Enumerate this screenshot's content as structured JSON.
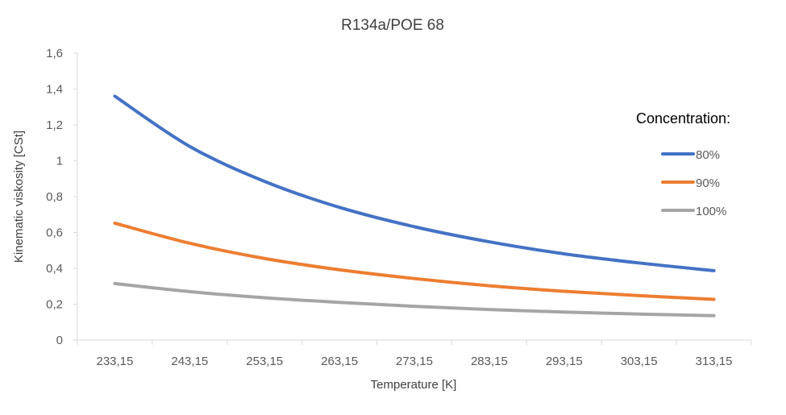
{
  "chart_data": {
    "type": "line",
    "title": "R134a/POE 68",
    "xlabel": "Temperature [K]",
    "ylabel": "Kinematic viskosity  [CSt]",
    "categories": [
      "233,15",
      "243,15",
      "253,15",
      "263,15",
      "273,15",
      "283,15",
      "293,15",
      "303,15",
      "313,15"
    ],
    "x": [
      233.15,
      243.15,
      253.15,
      263.15,
      273.15,
      283.15,
      293.15,
      303.15,
      313.15
    ],
    "yticks": [
      "0",
      "0,2",
      "0,4",
      "0,6",
      "0,8",
      "1",
      "1,2",
      "1,4",
      "1,6"
    ],
    "ylim": [
      0,
      1.6
    ],
    "grid": false,
    "legend_title": "Concentration:",
    "legend_position": "right",
    "series": [
      {
        "name": "80%",
        "color": "#4472C4",
        "values": [
          1.36,
          1.08,
          0.885,
          0.74,
          0.632,
          0.548,
          0.481,
          0.43,
          0.387
        ]
      },
      {
        "name": "90%",
        "color": "#ED7D31",
        "values": [
          0.652,
          0.54,
          0.455,
          0.392,
          0.343,
          0.303,
          0.272,
          0.248,
          0.227
        ]
      },
      {
        "name": "100%",
        "color": "#A5A5A5",
        "values": [
          0.315,
          0.27,
          0.236,
          0.21,
          0.188,
          0.17,
          0.156,
          0.145,
          0.136
        ]
      }
    ]
  }
}
